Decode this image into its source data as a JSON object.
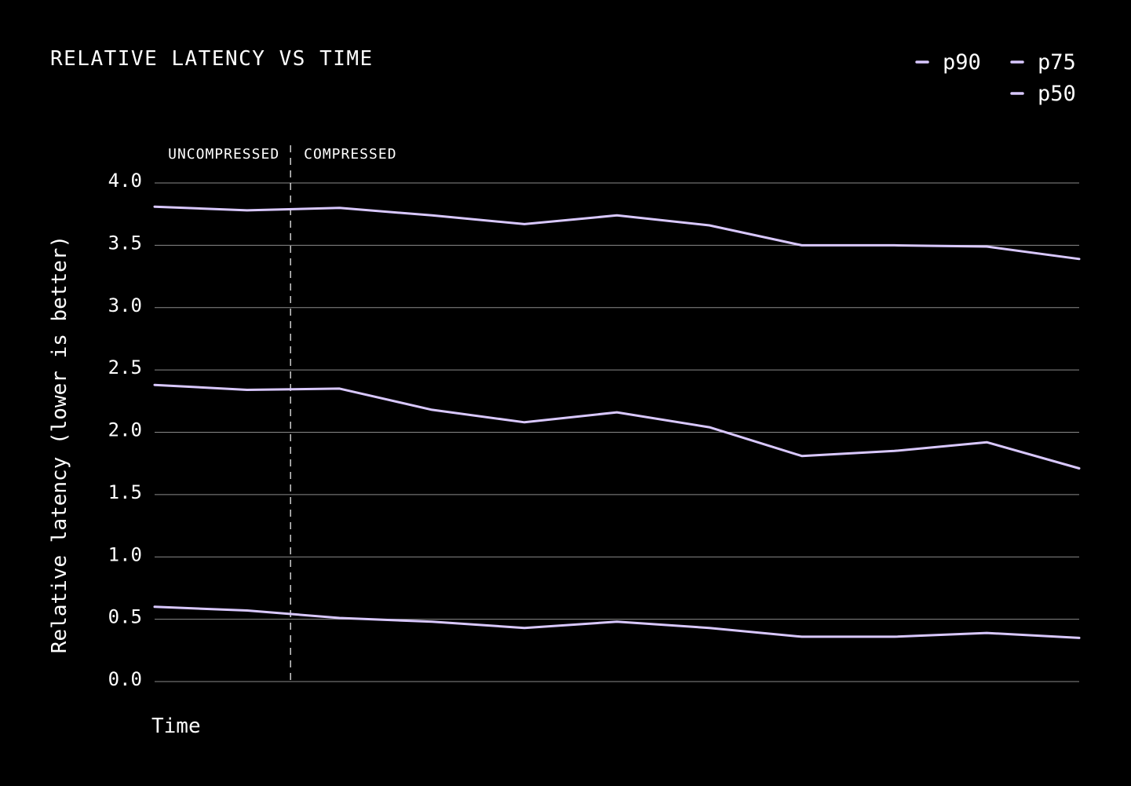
{
  "chart_data": {
    "type": "line",
    "title": "RELATIVE LATENCY VS TIME",
    "xlabel": "Time",
    "ylabel": "Relative latency (lower is better)",
    "ylim": [
      0,
      4
    ],
    "yticks": [
      "0.0",
      "0.5",
      "1.0",
      "1.5",
      "2.0",
      "2.5",
      "3.0",
      "3.5",
      "4.0"
    ],
    "grid": true,
    "legend_position": "top-right",
    "line_color": "#d9c8ff",
    "x": [
      0,
      1,
      2,
      3,
      4,
      5,
      6,
      7,
      8,
      9,
      10
    ],
    "series": [
      {
        "name": "p90",
        "values": [
          3.81,
          3.78,
          3.8,
          3.74,
          3.67,
          3.74,
          3.66,
          3.5,
          3.5,
          3.49,
          3.39
        ]
      },
      {
        "name": "p75",
        "values": [
          2.38,
          2.34,
          2.35,
          2.18,
          2.08,
          2.16,
          2.04,
          1.81,
          1.85,
          1.92,
          1.71
        ]
      },
      {
        "name": "p50",
        "values": [
          0.6,
          0.57,
          0.51,
          0.48,
          0.43,
          0.48,
          0.43,
          0.36,
          0.36,
          0.39,
          0.35
        ]
      }
    ],
    "annotations": {
      "divider_x": 1.47,
      "before_label": "UNCOMPRESSED",
      "after_label": "COMPRESSED"
    }
  }
}
